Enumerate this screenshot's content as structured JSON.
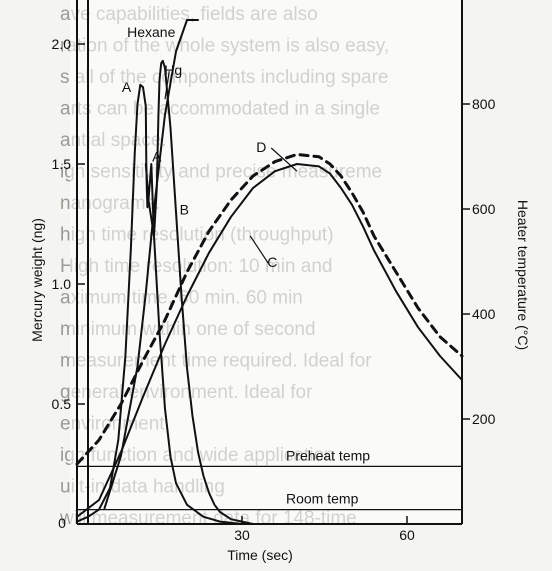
{
  "background_text": [
    "ave capabilities, fields are also",
    "ration of the whole system is also easy,",
    "s all of the components including spare",
    "arts can be accommodated in a single",
    "antial space.",
    "igh sensitivity and precise measureme",
    "nanograms.",
    "high time resolution (throughput)",
    "High time resolution: 10 min and",
    "aximum time, 60 min. 60 min",
    "minimum within one of second",
    "measurement time required. Ideal for",
    "general environment. Ideal for",
    "environment.",
    "igh function and wide application",
    "uilt-in data handling",
    "will measurement data for 148-time"
  ],
  "chart_data": {
    "type": "line",
    "xlabel": "Time (sec)",
    "ylabel": "Mercury weight (ng)",
    "y2label": "Heater temperature (°C)",
    "xlim": [
      0,
      70
    ],
    "ylim": [
      0,
      2.1
    ],
    "y2lim": [
      0,
      960
    ],
    "x_ticks": [
      {
        "v": 0,
        "label": "0"
      },
      {
        "v": 30,
        "label": "30"
      },
      {
        "v": 60,
        "label": "60"
      }
    ],
    "y_ticks": [
      {
        "v": 0.5,
        "label": "0.5"
      },
      {
        "v": 1.0,
        "label": "1.0"
      },
      {
        "v": 1.5,
        "label": "1.5"
      },
      {
        "v": 2.0,
        "label": "2.0"
      }
    ],
    "y2_ticks": [
      {
        "v": 200,
        "label": "200"
      },
      {
        "v": 400,
        "label": "400"
      },
      {
        "v": 600,
        "label": "600"
      },
      {
        "v": 800,
        "label": "800"
      }
    ],
    "origin_label": "0",
    "series": [
      {
        "name": "A",
        "axis": "left",
        "style": "solid",
        "x": [
          0,
          2,
          4,
          6,
          7.5,
          8.8,
          9.8,
          10.5,
          11,
          11.5,
          12,
          12.5,
          12.6,
          12.7,
          12.8,
          13,
          13.5,
          14,
          15,
          16,
          17,
          18,
          20,
          23,
          26,
          30
        ],
        "y": [
          0.01,
          0.03,
          0.06,
          0.15,
          0.35,
          0.7,
          1.15,
          1.55,
          1.75,
          1.83,
          1.82,
          1.74,
          1.5,
          1.4,
          1.32,
          1.35,
          1.5,
          1.2,
          0.8,
          0.48,
          0.28,
          0.17,
          0.08,
          0.03,
          0.01,
          0
        ]
      },
      {
        "name": "Hg",
        "axis": "left",
        "style": "solid",
        "x": [
          12.5,
          13,
          14,
          14.5,
          14.8,
          15,
          15.3,
          15.6,
          16,
          17,
          18,
          19,
          20,
          21,
          22,
          23,
          24,
          25,
          26,
          28,
          30,
          32,
          34
        ],
        "y": [
          1.5,
          1.35,
          1.2,
          1.4,
          1.7,
          1.85,
          1.92,
          1.93,
          1.9,
          1.65,
          1.3,
          0.95,
          0.65,
          0.45,
          0.3,
          0.2,
          0.13,
          0.08,
          0.05,
          0.02,
          0.01,
          0,
          0
        ]
      },
      {
        "name": "B",
        "axis": "right",
        "style": "solid",
        "x": [
          5,
          8,
          11,
          12.5,
          14,
          16,
          18,
          20,
          22
        ],
        "y": [
          30,
          130,
          300,
          440,
          600,
          780,
          900,
          960,
          960
        ]
      },
      {
        "name": "C",
        "axis": "left",
        "style": "solid",
        "x": [
          0,
          4,
          8,
          12,
          16,
          20,
          24,
          28,
          32,
          36,
          40,
          44,
          46,
          48,
          50,
          52,
          54,
          58,
          62,
          66,
          70
        ],
        "y": [
          0.03,
          0.1,
          0.3,
          0.53,
          0.75,
          0.95,
          1.13,
          1.28,
          1.4,
          1.47,
          1.5,
          1.49,
          1.46,
          1.4,
          1.33,
          1.24,
          1.14,
          0.97,
          0.82,
          0.7,
          0.6
        ]
      },
      {
        "name": "D",
        "axis": "left",
        "style": "dashed",
        "x": [
          0,
          4,
          8,
          12,
          16,
          20,
          24,
          28,
          32,
          36,
          40,
          44,
          46,
          48,
          50,
          52,
          54,
          58,
          62,
          66,
          70
        ],
        "y": [
          0.25,
          0.35,
          0.5,
          0.68,
          0.85,
          1.05,
          1.22,
          1.35,
          1.45,
          1.51,
          1.54,
          1.53,
          1.5,
          1.45,
          1.38,
          1.3,
          1.2,
          1.05,
          0.9,
          0.78,
          0.7
        ]
      }
    ],
    "reference_lines": [
      {
        "label": "Preheat temp",
        "axis": "left",
        "y": 0.24
      },
      {
        "label": "Room temp",
        "axis": "left",
        "y": 0.06
      }
    ],
    "vertical_line_x": 2,
    "annotations": [
      {
        "text": "Hexane",
        "at": [
          13.5,
          2.03
        ],
        "target": [
          13.5,
          2.03
        ]
      },
      {
        "text": "Hg",
        "at": [
          17.5,
          1.87
        ],
        "target": [
          16,
          1.77
        ]
      },
      {
        "text": "A",
        "at": [
          9,
          1.8
        ],
        "target": [
          9,
          1.8
        ]
      },
      {
        "text": "A",
        "at": [
          14.5,
          1.51
        ],
        "target": [
          14.5,
          1.51
        ]
      },
      {
        "text": "B",
        "at": [
          19.5,
          1.29
        ],
        "target": [
          19.5,
          1.29
        ]
      },
      {
        "text": "D",
        "at": [
          33.5,
          1.55
        ],
        "target": [
          40,
          1.47
        ]
      },
      {
        "text": "C",
        "at": [
          35.5,
          1.07
        ],
        "target": [
          31.5,
          1.2
        ]
      }
    ]
  }
}
